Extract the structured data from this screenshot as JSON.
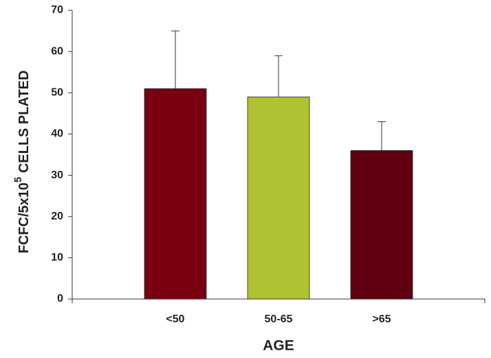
{
  "chart_data": {
    "type": "bar",
    "xlabel": "AGE",
    "ylabel_parts": [
      "FCFC/5x10",
      "5",
      " CELLS PLATED"
    ],
    "categories": [
      "<50",
      "50-65",
      ">65"
    ],
    "values": [
      51,
      49,
      36
    ],
    "errors": [
      14,
      10,
      7
    ],
    "colors": [
      "#7b0012",
      "#b0c232",
      "#60000e"
    ],
    "ylim": [
      0,
      70
    ],
    "yticks": [
      0,
      10,
      20,
      30,
      40,
      50,
      60,
      70
    ]
  }
}
